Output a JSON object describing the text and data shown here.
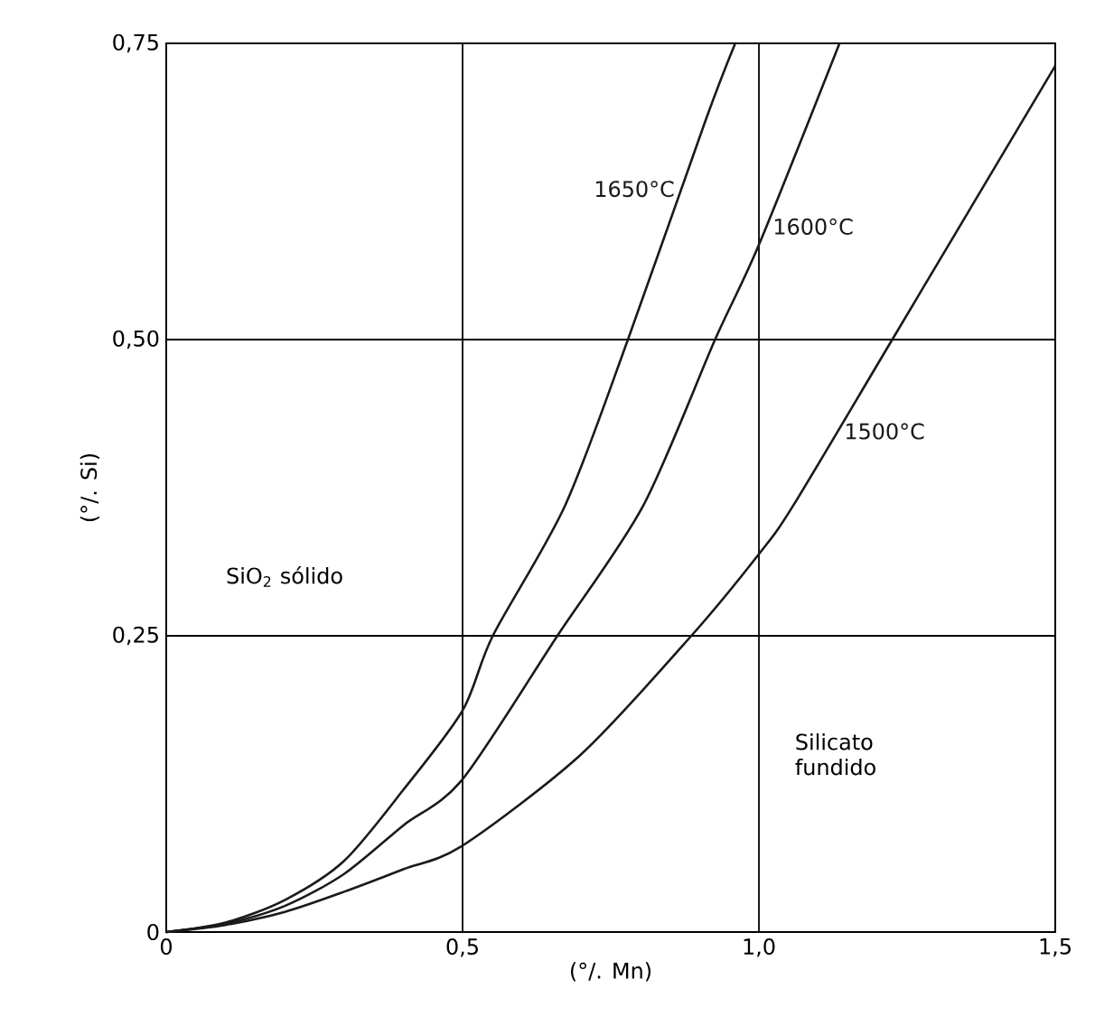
{
  "chart_data": {
    "type": "line",
    "xlabel": "(°/. Mn)",
    "ylabel": "(°/. Si)",
    "xlim": [
      0,
      1.5
    ],
    "ylim": [
      0,
      0.75
    ],
    "xticks": [
      {
        "value": 0,
        "label": "0"
      },
      {
        "value": 0.5,
        "label": "0,5"
      },
      {
        "value": 1.0,
        "label": "1,0"
      },
      {
        "value": 1.5,
        "label": "1,5"
      }
    ],
    "yticks": [
      {
        "value": 0,
        "label": "0"
      },
      {
        "value": 0.25,
        "label": "0,25"
      },
      {
        "value": 0.5,
        "label": "0,50"
      },
      {
        "value": 0.75,
        "label": "0,75"
      }
    ],
    "grid": true,
    "marker": "none",
    "line_style": "solid",
    "series": [
      {
        "name": "1650°C",
        "color": "#1a1a1a",
        "x": [
          0,
          0.1,
          0.2,
          0.3,
          0.4,
          0.5,
          0.551,
          0.673,
          0.779,
          0.91,
          0.96
        ],
        "values": [
          0,
          0.008,
          0.027,
          0.06,
          0.12,
          0.187,
          0.25,
          0.36,
          0.5,
          0.685,
          0.75
        ]
      },
      {
        "name": "1600°C",
        "color": "#1a1a1a",
        "x": [
          0,
          0.1,
          0.2,
          0.3,
          0.4,
          0.5,
          0.66,
          0.805,
          0.926,
          1.0,
          1.136
        ],
        "values": [
          0,
          0.007,
          0.022,
          0.049,
          0.09,
          0.129,
          0.25,
          0.36,
          0.5,
          0.58,
          0.75
        ]
      },
      {
        "name": "1500°C",
        "color": "#1a1a1a",
        "x": [
          0,
          0.1,
          0.2,
          0.3,
          0.4,
          0.5,
          0.7,
          0.886,
          1.0,
          1.058,
          1.225,
          1.5
        ],
        "values": [
          0,
          0.006,
          0.017,
          0.034,
          0.053,
          0.073,
          0.15,
          0.25,
          0.319,
          0.36,
          0.5,
          0.731
        ]
      }
    ],
    "annotations": [
      "SiO$_{2}$ sólido",
      "Silicato fundido"
    ]
  }
}
